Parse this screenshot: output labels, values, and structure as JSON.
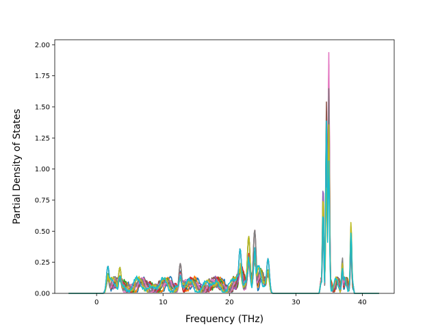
{
  "chart_data": {
    "type": "line",
    "title": "",
    "xlabel": "Frequency (THz)",
    "ylabel": "Partial Density of States",
    "xlim": [
      -6.3,
      44.8
    ],
    "ylim": [
      0,
      2.04
    ],
    "xticks": [
      0,
      10,
      20,
      30,
      40
    ],
    "yticks": [
      0.0,
      0.25,
      0.5,
      0.75,
      1.0,
      1.25,
      1.5,
      1.75,
      2.0
    ],
    "xtick_labels": [
      "0",
      "10",
      "20",
      "30",
      "40"
    ],
    "ytick_labels": [
      "0.00",
      "0.25",
      "0.50",
      "0.75",
      "1.00",
      "1.25",
      "1.50",
      "1.75",
      "2.00"
    ],
    "grid": false,
    "legend": "none",
    "series_count": 10,
    "colors": [
      "#1f77b4",
      "#ff7f0e",
      "#2ca02c",
      "#d62728",
      "#9467bd",
      "#8c564b",
      "#e377c2",
      "#7f7f7f",
      "#bcbd22",
      "#17becf"
    ],
    "x_range": [
      -4.2,
      42.5
    ],
    "bands": [
      {
        "from": 1.0,
        "to": 26.2,
        "typical": "0.05–0.20",
        "max": 0.51
      },
      {
        "from": 33.5,
        "to": 38.8,
        "max": 1.94
      }
    ],
    "peaks": [
      {
        "x": 1.7,
        "y": 0.22
      },
      {
        "x": 3.5,
        "y": 0.21
      },
      {
        "x": 12.6,
        "y": 0.24
      },
      {
        "x": 21.6,
        "y": 0.36
      },
      {
        "x": 22.9,
        "y": 0.46
      },
      {
        "x": 23.8,
        "y": 0.51
      },
      {
        "x": 25.8,
        "y": 0.28
      },
      {
        "x": 34.1,
        "y": 0.88
      },
      {
        "x": 34.6,
        "y": 1.54
      },
      {
        "x": 34.95,
        "y": 1.94
      },
      {
        "x": 37.0,
        "y": 0.29
      },
      {
        "x": 38.3,
        "y": 0.58
      }
    ]
  }
}
